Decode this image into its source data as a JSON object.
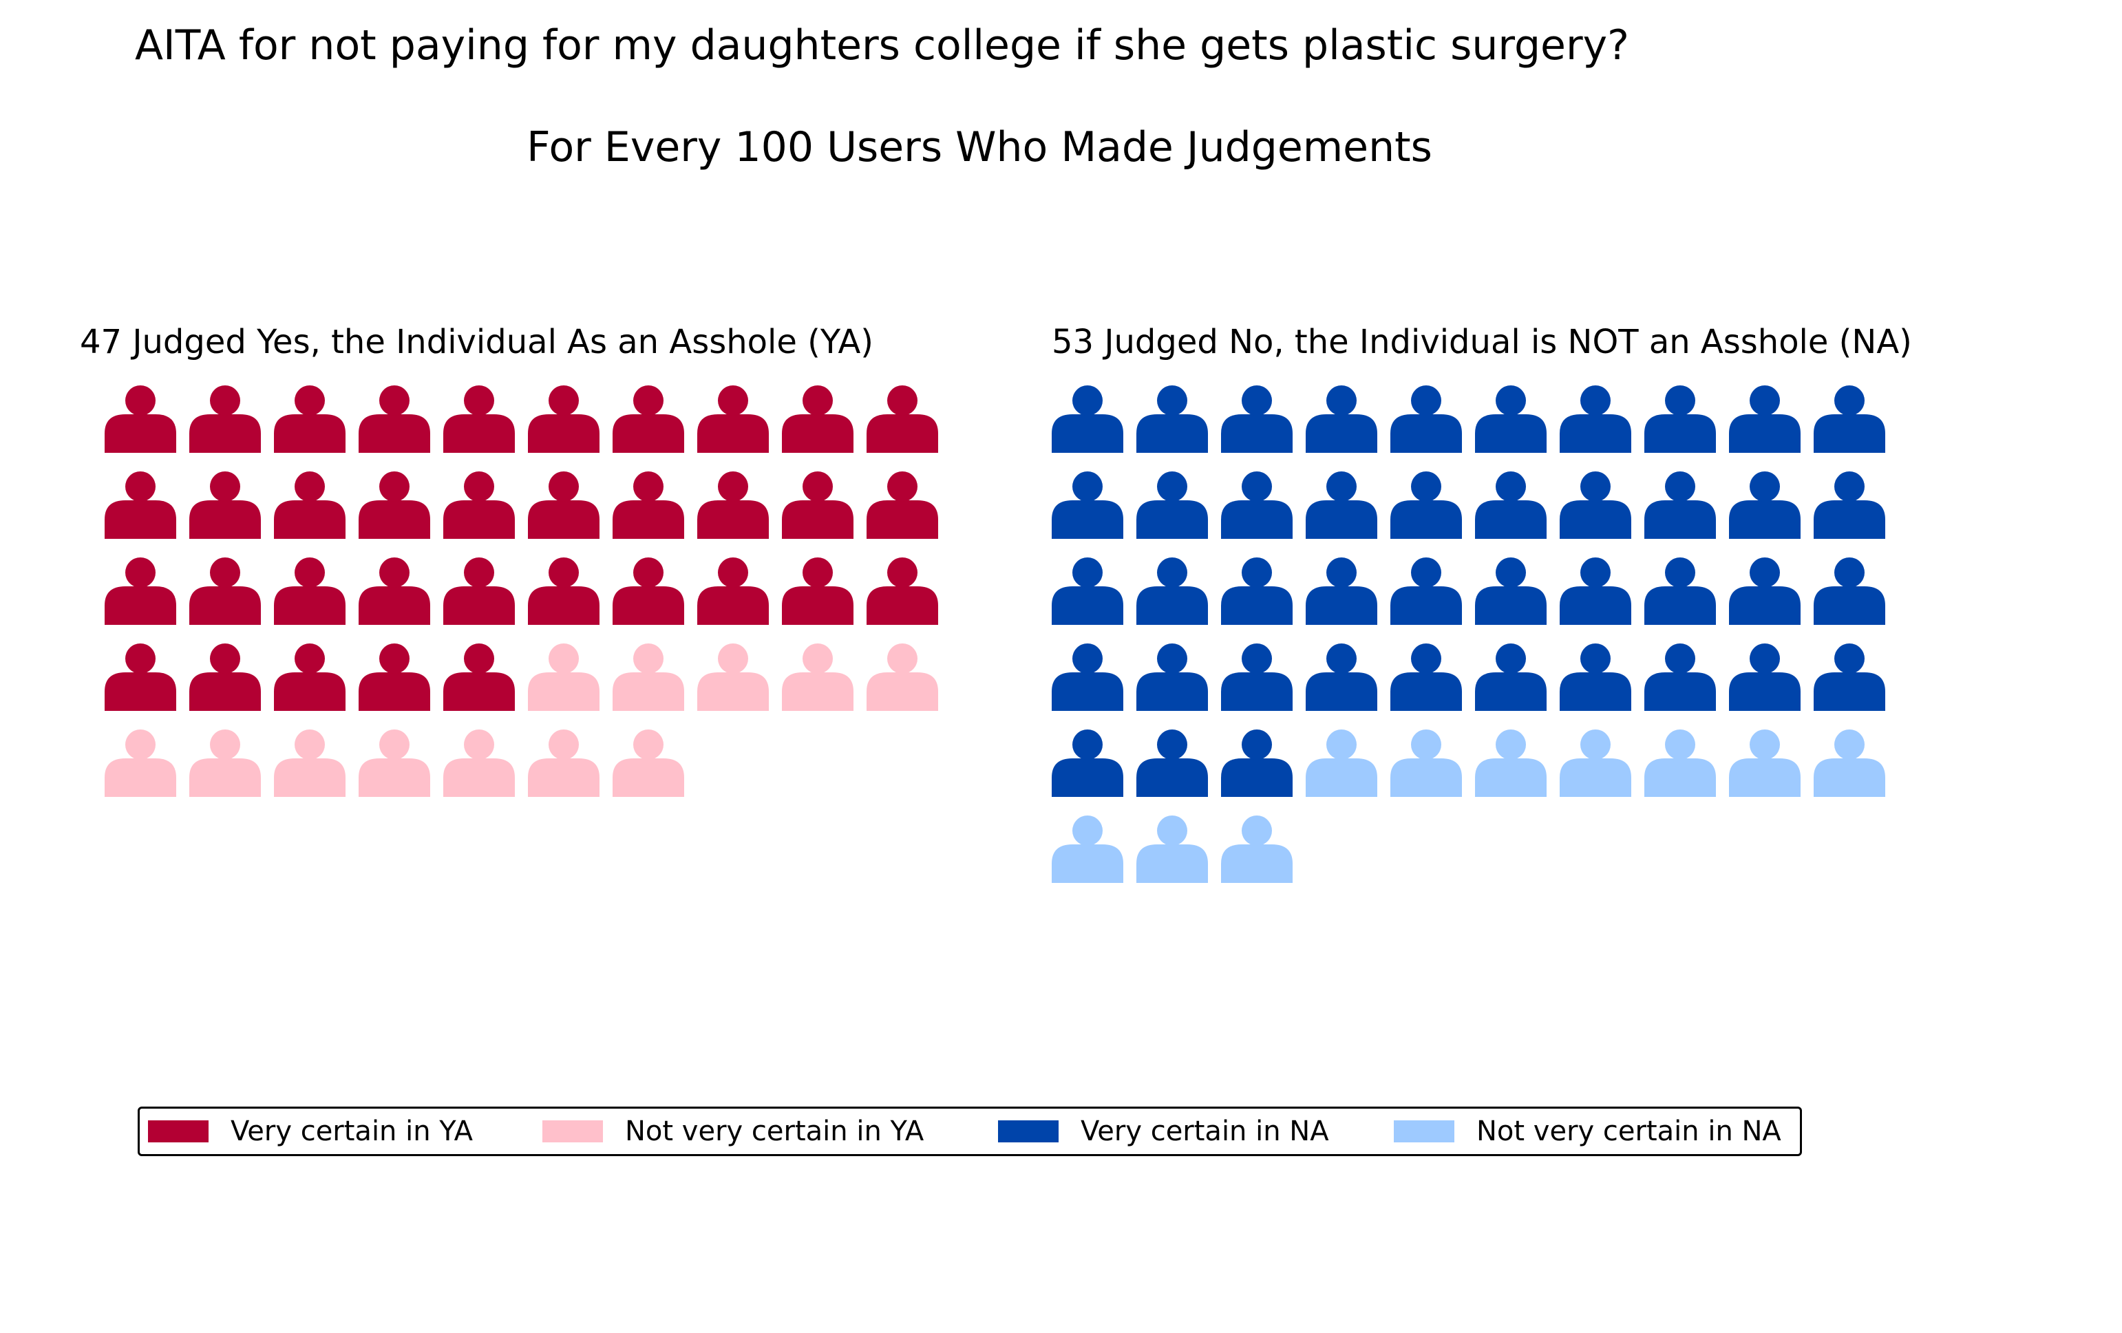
{
  "title": "AITA for not paying for my daughters college if she gets plastic surgery?",
  "subtitle": "For Every 100 Users Who Made Judgements",
  "colors": {
    "very_certain_ya": "#b30033",
    "not_very_certain_ya": "#ffc0cb",
    "very_certain_na": "#0044aa",
    "not_very_certain_na": "#9ecaff"
  },
  "icon": "person-icon",
  "chart_data": {
    "type": "pictogram",
    "per_row": 10,
    "panels": [
      {
        "title": "47 Judged Yes, the Individual As an Asshole (YA)",
        "segments": [
          {
            "name": "Very certain in YA",
            "count": 35,
            "color_key": "very_certain_ya"
          },
          {
            "name": "Not very certain in YA",
            "count": 12,
            "color_key": "not_very_certain_ya"
          }
        ]
      },
      {
        "title": "53 Judged No, the Individual is NOT an Asshole (NA)",
        "segments": [
          {
            "name": "Very certain in NA",
            "count": 43,
            "color_key": "very_certain_na"
          },
          {
            "name": "Not very certain in NA",
            "count": 10,
            "color_key": "not_very_certain_na"
          }
        ]
      }
    ],
    "legend": [
      {
        "label": "Very certain in YA",
        "color_key": "very_certain_ya"
      },
      {
        "label": "Not very certain in YA",
        "color_key": "not_very_certain_ya"
      },
      {
        "label": "Very certain in NA",
        "color_key": "very_certain_na"
      },
      {
        "label": "Not very certain in NA",
        "color_key": "not_very_certain_na"
      }
    ],
    "legend_position": "bottom"
  }
}
